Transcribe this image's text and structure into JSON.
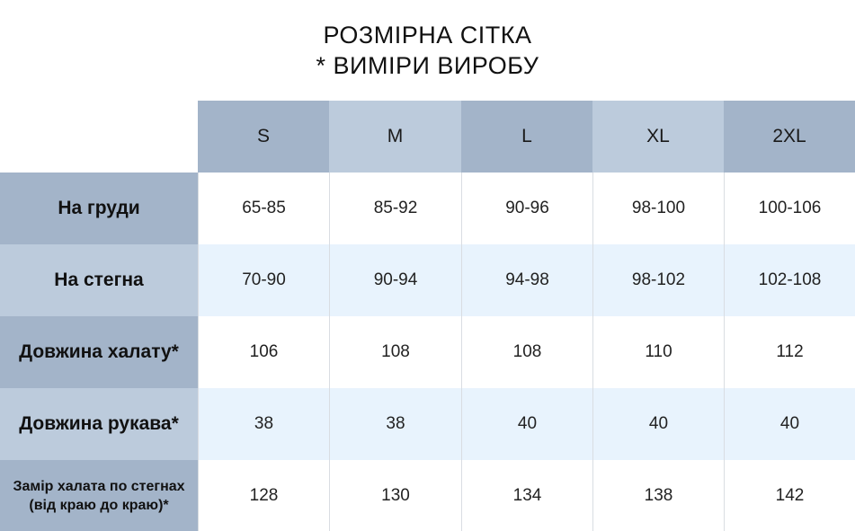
{
  "title": {
    "line1": "РОЗМІРНА СІТКА",
    "line2": "* ВИМІРИ ВИРОБУ"
  },
  "sizes": [
    "S",
    "M",
    "L",
    "XL",
    "2XL"
  ],
  "rows": [
    {
      "label": "На груди",
      "values": [
        "65-85",
        "85-92",
        "90-96",
        "98-100",
        "100-106"
      ]
    },
    {
      "label": "На стегна",
      "values": [
        "70-90",
        "90-94",
        "94-98",
        "98-102",
        "102-108"
      ]
    },
    {
      "label": "Довжина халату*",
      "values": [
        "106",
        "108",
        "108",
        "110",
        "112"
      ]
    },
    {
      "label": "Довжина рукава*",
      "values": [
        "38",
        "38",
        "40",
        "40",
        "40"
      ]
    },
    {
      "label_line1": "Замір халата по стегнах",
      "label_line2": "(від краю до краю)*",
      "values": [
        "128",
        "130",
        "134",
        "138",
        "142"
      ]
    }
  ],
  "colors": {
    "header_dark": "#a3b4c9",
    "header_light": "#bccbdc",
    "row_tint": "#e8f3fd"
  }
}
